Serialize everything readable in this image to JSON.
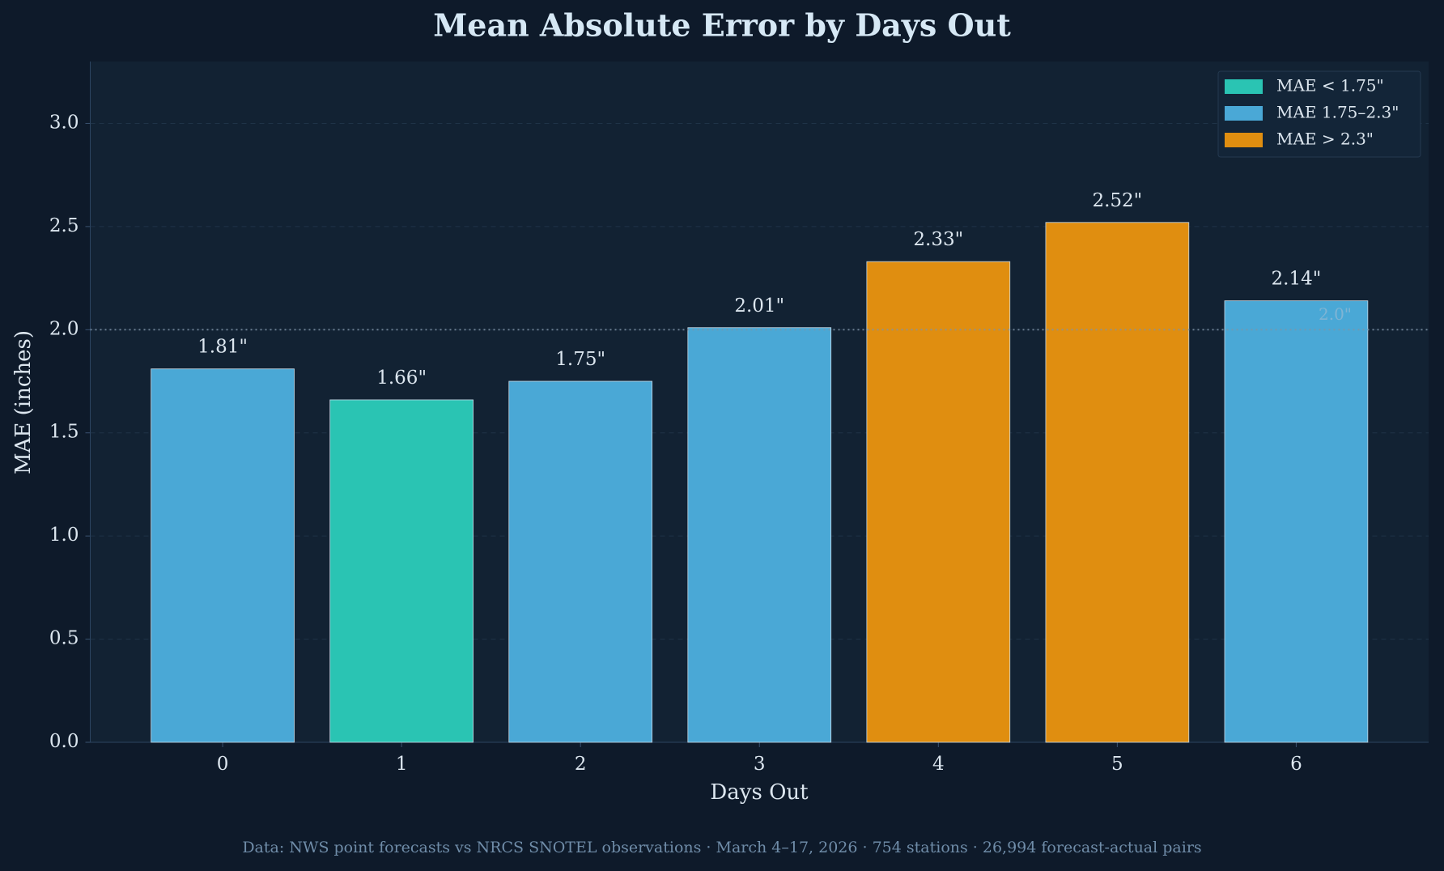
{
  "chart_data": {
    "type": "bar",
    "title": "Mean Absolute Error by Days Out",
    "xlabel": "Days Out",
    "ylabel": "MAE (inches)",
    "x": [
      0,
      1,
      2,
      3,
      4,
      5,
      6
    ],
    "xticks": [
      0,
      1,
      2,
      3,
      4,
      5,
      6
    ],
    "xlim": [
      -0.74,
      6.74
    ],
    "values": [
      1.81,
      1.66,
      1.75,
      2.01,
      2.33,
      2.52,
      2.14
    ],
    "value_labels": [
      "1.81\"",
      "1.66\"",
      "1.75\"",
      "2.01\"",
      "2.33\"",
      "2.52\"",
      "2.14\""
    ],
    "colors": [
      "#4aa8d6",
      "#2ac4b3",
      "#4aa8d6",
      "#4aa8d6",
      "#e08e10",
      "#e08e10",
      "#4aa8d6"
    ],
    "ylim": [
      0,
      3.3
    ],
    "yticks": [
      {
        "value": 0,
        "label": "0.0"
      },
      0.5,
      {
        "value": 1,
        "label": "1.0"
      },
      1.5,
      {
        "value": 2,
        "label": "2.0"
      },
      2.5,
      {
        "value": 3,
        "label": "3.0"
      }
    ],
    "grid": true,
    "reference_line": {
      "value": 2.0,
      "label": "2.0\""
    },
    "legend_position": "upper right",
    "legend": [
      {
        "name": "MAE < 1.75\"",
        "color": "#2ac4b3"
      },
      {
        "name": "MAE 1.75–2.3\"",
        "color": "#4aa8d6"
      },
      {
        "name": "MAE > 2.3\"",
        "color": "#e08e10"
      }
    ],
    "footer": "Data: NWS point forecasts vs NRCS SNOTEL observations  ·  March 4–17, 2026  ·  754 stations  ·  26,994 forecast-actual pairs"
  }
}
